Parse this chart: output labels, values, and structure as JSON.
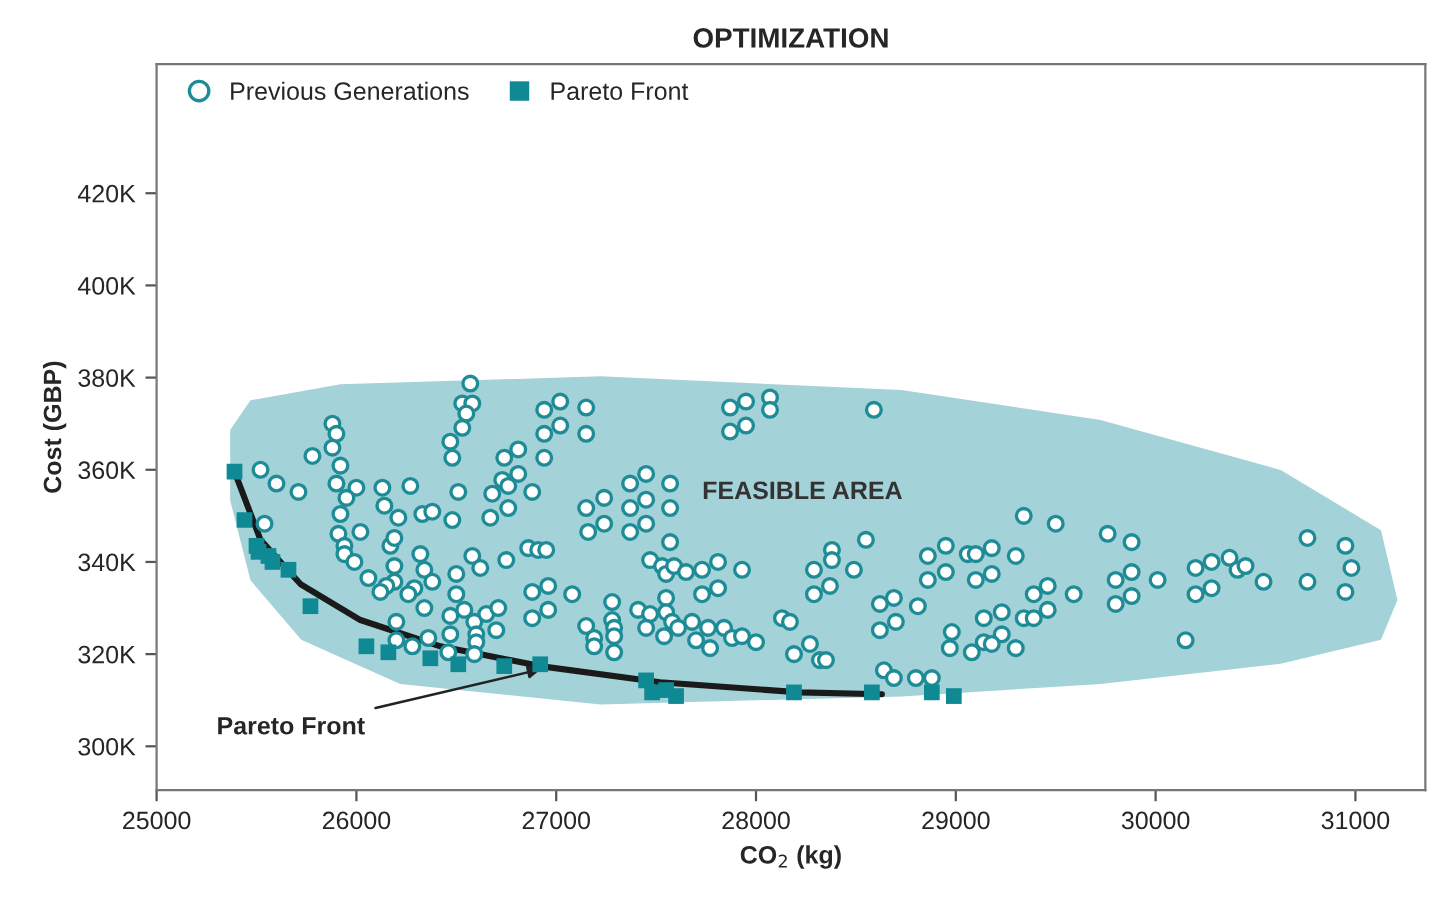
{
  "chart_data": {
    "type": "scatter",
    "title": "OPTIMIZATION",
    "xlabel": "CO$_{2}$ (kg)",
    "ylabel": "Cost (GBP)",
    "xlim": [
      25000,
      31350
    ],
    "ylim": [
      290500,
      448000
    ],
    "xticks": [
      25000,
      26000,
      27000,
      28000,
      29000,
      30000,
      31000
    ],
    "yticks": [
      {
        "value": 300000,
        "label": "300K"
      },
      {
        "value": 320000,
        "label": "320K"
      },
      {
        "value": 340000,
        "label": "340K"
      },
      {
        "value": 360000,
        "label": "360K"
      },
      {
        "value": 380000,
        "label": "380K"
      },
      {
        "value": 400000,
        "label": "400K"
      },
      {
        "value": 420000,
        "label": "420K"
      }
    ],
    "grid": false,
    "legend": "top left",
    "annotations": [
      "FEASIBLE AREA",
      {
        "text": "Pareto Front",
        "x": 26950,
        "y": 317000
      }
    ],
    "series": [
      {
        "name": "Previous Generations",
        "marker": "circle",
        "color": "#1e8c96",
        "x": [
          26570,
          26530,
          26580,
          26550,
          26530,
          26470,
          26480,
          25880,
          25900,
          25880,
          25780,
          25520,
          25600,
          25710,
          25920,
          25900,
          26000,
          25950,
          25920,
          26210,
          26140,
          26130,
          26270,
          26330,
          26380,
          26480,
          26510,
          26680,
          26730,
          26760,
          26810,
          26740,
          26810,
          26940,
          26880,
          26760,
          26670,
          26940,
          27020,
          27150,
          26940,
          27020,
          27150,
          25540,
          25910,
          25940,
          25940,
          26020,
          25990,
          26170,
          26190,
          26190,
          26190,
          26150,
          26120,
          26060,
          26320,
          26340,
          26380,
          26290,
          26260,
          26500,
          26500,
          26580,
          26620,
          26750,
          26860,
          26910,
          26950,
          26880,
          26960,
          27080,
          26340,
          26470,
          26540,
          26590,
          26650,
          26710,
          26700,
          26600,
          26470,
          26360,
          26280,
          26200,
          26200,
          26600,
          26590,
          26460,
          26880,
          26960,
          27150,
          27190,
          27190,
          27150,
          27160,
          27870,
          27950,
          28070,
          28070,
          27870,
          27950,
          28590,
          27370,
          27450,
          27570,
          27240,
          27370,
          27450,
          27570,
          27240,
          27370,
          27450,
          27570,
          28550,
          27470,
          27530,
          27550,
          27590,
          27650,
          27730,
          27810,
          27930,
          27810,
          27730,
          27550,
          27280,
          28290,
          28380,
          28380,
          28490,
          28370,
          28290,
          28860,
          28950,
          29060,
          29100,
          28950,
          28860,
          29100,
          27280,
          27290,
          27290,
          27290,
          27410,
          27470,
          27450,
          27550,
          27580,
          27610,
          27680,
          27540,
          27700,
          27760,
          27770,
          27840,
          27880,
          27930,
          28000,
          28130,
          28170,
          28190,
          28270,
          28320,
          28350,
          28620,
          28690,
          28700,
          28620,
          28810,
          28980,
          28970,
          29080,
          28640,
          28690,
          28800,
          28880,
          29340,
          29500,
          29760,
          29880,
          29180,
          29300,
          29180,
          29390,
          29460,
          29590,
          29800,
          29880,
          30010,
          29800,
          29880,
          30200,
          30280,
          30370,
          30410,
          30450,
          30540,
          30200,
          30280,
          30760,
          30950,
          30980,
          30950,
          30760,
          30150,
          29140,
          29230,
          29340,
          29390,
          29460,
          29230,
          29140,
          29180,
          29300
        ],
        "values": [
          378700,
          374400,
          374400,
          372200,
          369100,
          366100,
          362600,
          370000,
          367800,
          364800,
          363000,
          360000,
          357000,
          355200,
          360900,
          357000,
          356100,
          353900,
          350400,
          349600,
          352200,
          356100,
          356500,
          350400,
          350900,
          349100,
          355200,
          354800,
          357800,
          356500,
          359100,
          362600,
          364400,
          362600,
          355200,
          351700,
          349600,
          367800,
          369600,
          367800,
          373000,
          374800,
          373500,
          348300,
          346100,
          343500,
          341700,
          346500,
          340000,
          343500,
          345200,
          339100,
          335700,
          334800,
          333500,
          336500,
          341700,
          338300,
          335700,
          334300,
          333000,
          337400,
          333000,
          341300,
          338700,
          340400,
          343000,
          342600,
          342600,
          333500,
          334800,
          333000,
          330000,
          328300,
          329600,
          327000,
          328700,
          330000,
          325200,
          324300,
          324300,
          323500,
          321700,
          327000,
          323000,
          322600,
          320000,
          320400,
          327800,
          329600,
          326100,
          323500,
          321700,
          351700,
          346500,
          373500,
          374800,
          375700,
          373000,
          368300,
          369600,
          373000,
          357000,
          359100,
          357000,
          353900,
          351700,
          353500,
          351700,
          348300,
          346500,
          348300,
          344300,
          344800,
          340400,
          339100,
          337400,
          339100,
          337800,
          338300,
          340000,
          338300,
          334300,
          333000,
          332200,
          331300,
          338300,
          342600,
          340400,
          338300,
          334800,
          333000,
          341300,
          343500,
          341700,
          341700,
          337800,
          336100,
          336100,
          327400,
          325700,
          323900,
          320400,
          329600,
          328700,
          325700,
          329100,
          327000,
          325700,
          327000,
          323900,
          323000,
          325700,
          321300,
          325700,
          323500,
          323900,
          322600,
          327800,
          327000,
          320000,
          322200,
          318700,
          318700,
          330900,
          332200,
          327000,
          325200,
          330400,
          324800,
          321300,
          320400,
          316500,
          314800,
          314800,
          314800,
          350000,
          348300,
          346100,
          344300,
          343000,
          341300,
          337400,
          333000,
          334800,
          333000,
          336100,
          337800,
          336100,
          330900,
          332600,
          338700,
          340000,
          340900,
          338300,
          339100,
          335700,
          333000,
          334300,
          345200,
          343500,
          338700,
          333500,
          335700,
          323000,
          327800,
          329100,
          327800,
          327800,
          329600,
          324300,
          322600,
          322200,
          321300
        ]
      },
      {
        "name": "Pareto Front",
        "marker": "square",
        "color": "#0f8a94",
        "x": [
          25390,
          25440,
          25500,
          25510,
          25560,
          25580,
          25660,
          25770,
          26050,
          26160,
          26370,
          26510,
          26740,
          26920,
          27450,
          27480,
          27550,
          27600,
          28190,
          28580,
          28880,
          28990
        ],
        "values": [
          359600,
          349100,
          343500,
          342200,
          341300,
          340000,
          338300,
          330400,
          321700,
          320400,
          319100,
          317800,
          317400,
          317800,
          314300,
          311700,
          312200,
          310900,
          311700,
          311700,
          311700,
          310900
        ]
      },
      {
        "type": "line",
        "color": "#1a1a1a",
        "x": [
          25390,
          25520,
          25720,
          26020,
          26420,
          26920,
          27520,
          28220,
          28630
        ],
        "values": [
          359600,
          344800,
          335200,
          327400,
          321700,
          317400,
          313900,
          311700,
          311300
        ]
      }
    ]
  }
}
